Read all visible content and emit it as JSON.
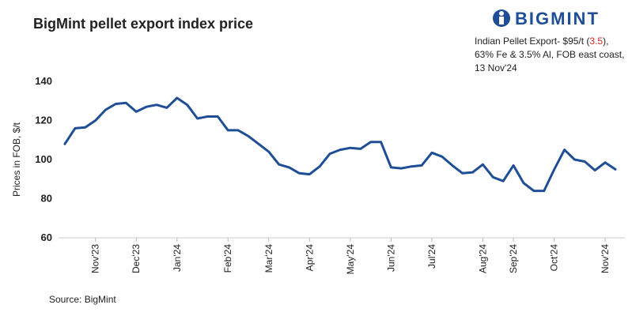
{
  "chart_data": {
    "type": "line",
    "title": "BigMint pellet export index price",
    "logo": "BIGMINT",
    "annotation": {
      "line1_prefix": "Indian Pellet Export- $95/t (",
      "line1_change": "3.5",
      "line1_suffix": "),",
      "line2": "63% Fe & 3.5% Al, FOB east coast,",
      "line3": "13 Nov'24"
    },
    "ylabel": "Prices in FOB, $/t",
    "source": "Source: BigMint",
    "categories": [
      null,
      null,
      null,
      "Nov'23",
      null,
      null,
      null,
      "Dec'23",
      null,
      null,
      null,
      "Jan'24",
      null,
      null,
      null,
      null,
      "Feb'24",
      null,
      null,
      null,
      "Mar'24",
      null,
      null,
      null,
      "Apr'24",
      null,
      null,
      null,
      "May'24",
      null,
      null,
      null,
      "Jun'24",
      null,
      null,
      null,
      "Jul'24",
      null,
      null,
      null,
      null,
      "Aug'24",
      null,
      null,
      "Sep'24",
      null,
      null,
      null,
      "Oct'24",
      null,
      null,
      null,
      null,
      "Nov'24",
      null
    ],
    "series": [
      {
        "name": "BigMint pellet export index",
        "color": "#1f4e96",
        "values": [
          108,
          116,
          116.5,
          120,
          125.5,
          128.5,
          129,
          124.5,
          127,
          128,
          126.5,
          131.5,
          128,
          121,
          122,
          122,
          115,
          115,
          112,
          108,
          104,
          97.5,
          96,
          93,
          92.5,
          96.5,
          103,
          105,
          106,
          105.5,
          109,
          109,
          96,
          95.5,
          96.5,
          97,
          103.5,
          101.5,
          97,
          93,
          93.5,
          97.5,
          91,
          89,
          97,
          88,
          84,
          84,
          95,
          105,
          100,
          99,
          94.5,
          98.5,
          95
        ]
      }
    ],
    "ylim": [
      60,
      140
    ],
    "yticks": [
      60,
      80,
      100,
      120,
      140
    ]
  }
}
